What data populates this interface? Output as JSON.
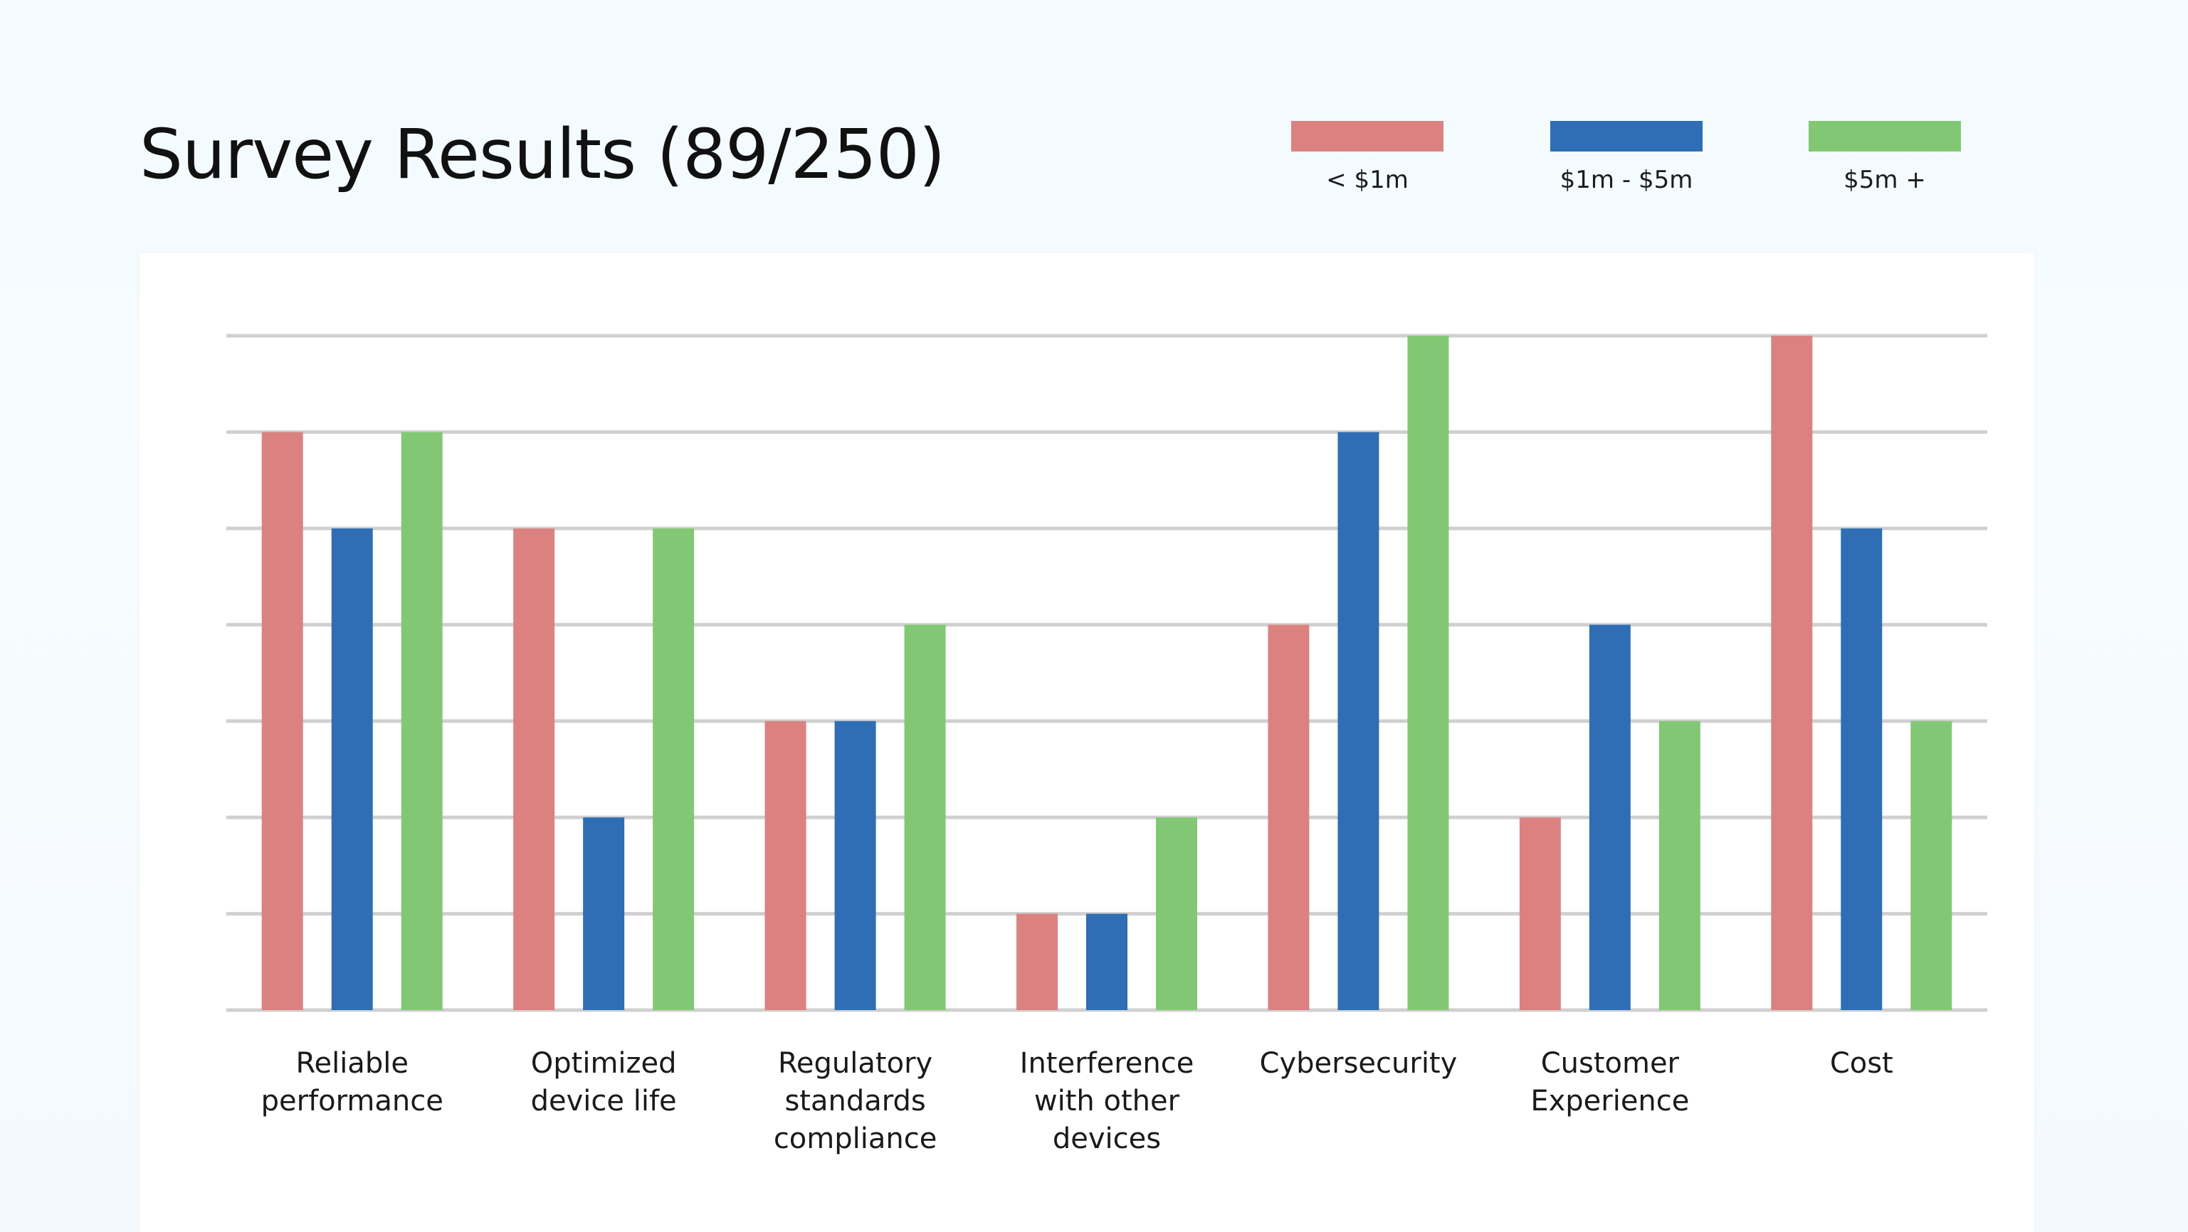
{
  "title": "Survey Results (89/250)",
  "legend": [
    {
      "label": "< $1m",
      "color": "#db8280"
    },
    {
      "label": "$1m - $5m",
      "color": "#2f6eb4"
    },
    {
      "label": "$5m +",
      "color": "#82c874"
    }
  ],
  "chart_data": {
    "type": "bar",
    "title": "Survey Results (89/250)",
    "xlabel": "",
    "ylabel": "",
    "ylim": [
      0,
      7
    ],
    "grid": true,
    "legend_position": "top-right",
    "categories": [
      [
        "Reliable",
        "performance"
      ],
      [
        "Optimized",
        "device life"
      ],
      [
        "Regulatory",
        "standards",
        "compliance"
      ],
      [
        "Interference",
        "with other",
        "devices"
      ],
      [
        "Cybersecurity"
      ],
      [
        "Customer",
        "Experience"
      ],
      [
        "Cost"
      ]
    ],
    "series": [
      {
        "name": "< $1m",
        "color": "#db8280",
        "values": [
          6,
          5,
          3,
          1,
          4,
          2,
          7
        ]
      },
      {
        "name": "$1m - $5m",
        "color": "#2f6eb4",
        "values": [
          5,
          2,
          3,
          1,
          6,
          4,
          5
        ]
      },
      {
        "name": "$5m +",
        "color": "#82c874",
        "values": [
          6,
          5,
          4,
          2,
          7,
          3,
          3
        ]
      }
    ]
  }
}
